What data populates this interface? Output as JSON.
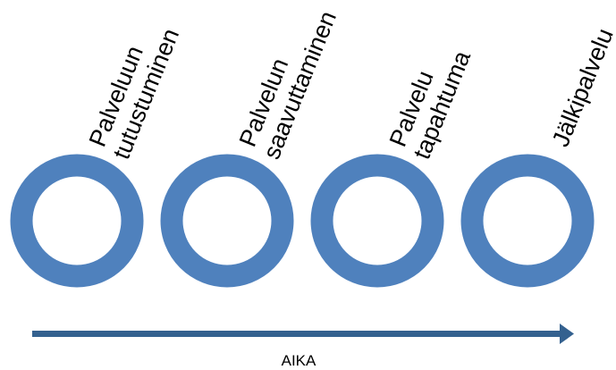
{
  "colors": {
    "ring": "#4f81bd",
    "arrow": "#34618f"
  },
  "stages": [
    {
      "line1": "Palveluun",
      "line2": "tutustuminen"
    },
    {
      "line1": "Palvelun",
      "line2": "saavuttaminen"
    },
    {
      "line1": "Palvelu",
      "line2": "tapahtuma"
    },
    {
      "line1": "Jälkipalvelu",
      "line2": ""
    }
  ],
  "timeline": {
    "label": "AIKA",
    "icon": "arrow-right-icon"
  }
}
